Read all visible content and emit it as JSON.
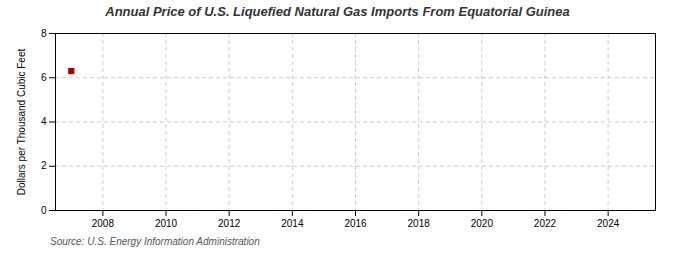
{
  "chart_data": {
    "type": "scatter",
    "title": "Annual Price of U.S. Liquefied Natural Gas Imports From Equatorial Guinea",
    "ylabel": "Dollars per Thousand Cubic Feet",
    "source": "Source: U.S. Energy Information Administration",
    "x": [
      2007
    ],
    "values": [
      6.3
    ],
    "color": "#aa0000",
    "marker": "square",
    "xlim": [
      2006.5,
      2025.5
    ],
    "xticks": [
      2008,
      2010,
      2012,
      2014,
      2016,
      2018,
      2020,
      2022,
      2024
    ],
    "ylim": [
      0,
      8
    ],
    "yticks": [
      0,
      2,
      4,
      6,
      8
    ],
    "grid": true
  }
}
